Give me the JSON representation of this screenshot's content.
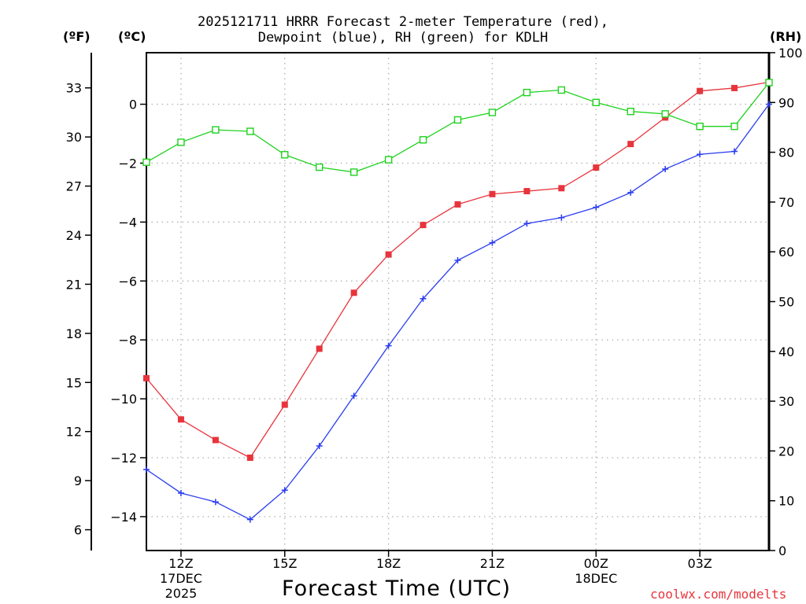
{
  "title_line1": "2025121711 HRRR Forecast 2-meter Temperature (red),",
  "title_line2": "Dewpoint (blue), RH (green) for KDLH",
  "unit_f": "(ºF)",
  "unit_c": "(ºC)",
  "unit_rh": "(RH)",
  "x_title": "Forecast Time (UTC)",
  "credit": "coolwx.com/modelts",
  "colors": {
    "temperature": "#e8343c",
    "dewpoint": "#2a3cf0",
    "rh": "#1ed21e",
    "grid": "#b4b4b4"
  },
  "chart_data": {
    "type": "line",
    "title": "2025121711 HRRR Forecast 2-meter Temperature (red), Dewpoint (blue), RH (green) for KDLH",
    "xlabel": "Forecast Time (UTC)",
    "ylabel_left_f": "(ºF)",
    "ylabel_left_c": "(ºC)",
    "ylabel_right": "(RH)",
    "x": [
      11,
      12,
      13,
      14,
      15,
      16,
      17,
      18,
      19,
      20,
      21,
      22,
      23,
      24,
      25,
      26,
      27,
      28,
      29
    ],
    "xlim": [
      11,
      29
    ],
    "x_ticks": [
      {
        "x": 12,
        "lines": [
          "12Z",
          "17DEC",
          "2025"
        ]
      },
      {
        "x": 15,
        "lines": [
          "15Z"
        ]
      },
      {
        "x": 18,
        "lines": [
          "18Z"
        ]
      },
      {
        "x": 21,
        "lines": [
          "21Z"
        ]
      },
      {
        "x": 24,
        "lines": [
          "00Z",
          "18DEC"
        ]
      },
      {
        "x": 27,
        "lines": [
          "03Z"
        ]
      }
    ],
    "ylim_c": [
      -15.15,
      1.75
    ],
    "c_ticks": [
      0,
      -2,
      -4,
      -6,
      -8,
      -10,
      -12,
      -14
    ],
    "f_ticks": [
      33,
      30,
      27,
      24,
      21,
      18,
      15,
      12,
      9,
      6
    ],
    "ylim_rh": [
      0,
      100
    ],
    "rh_ticks": [
      0,
      10,
      20,
      30,
      40,
      50,
      60,
      70,
      80,
      90,
      100
    ],
    "series": [
      {
        "name": "Temperature",
        "axis": "c",
        "marker": "filled-square",
        "values": [
          -9.3,
          -10.7,
          -11.4,
          -12.0,
          -10.2,
          -8.3,
          -6.4,
          -5.1,
          -4.1,
          -3.4,
          -3.05,
          -2.95,
          -2.85,
          -2.15,
          -1.35,
          -0.45,
          0.45,
          0.55,
          0.75
        ]
      },
      {
        "name": "Dewpoint",
        "axis": "c",
        "marker": "plus",
        "values": [
          -12.4,
          -13.2,
          -13.5,
          -14.1,
          -13.1,
          -11.6,
          -9.9,
          -8.2,
          -6.6,
          -5.3,
          -4.7,
          -4.05,
          -3.85,
          -3.5,
          -3.0,
          -2.2,
          -1.7,
          -1.6,
          0.0
        ]
      },
      {
        "name": "RH",
        "axis": "rh",
        "marker": "open-square",
        "values": [
          78,
          82,
          84.5,
          84.2,
          79.5,
          77,
          76,
          78.5,
          82.5,
          86.5,
          88,
          92,
          92.5,
          90,
          88.2,
          87.7,
          85.2,
          85.2,
          94
        ]
      }
    ]
  }
}
